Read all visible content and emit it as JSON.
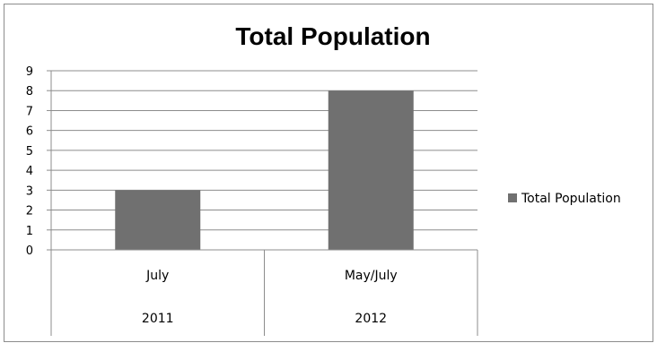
{
  "chart_data": {
    "type": "bar",
    "title": "Total Population",
    "categories": [
      "July",
      "May/July"
    ],
    "category_groups": [
      "2011",
      "2012"
    ],
    "series": [
      {
        "name": "Total Population",
        "values": [
          3,
          8
        ]
      }
    ],
    "ylim": [
      0,
      9
    ],
    "yticks": [
      0,
      1,
      2,
      3,
      4,
      5,
      6,
      7,
      8,
      9
    ],
    "grid": true,
    "legend": "right",
    "colors": {
      "bar": "#707070",
      "grid": "#8c8c8c",
      "axis": "#8c8c8c"
    }
  }
}
